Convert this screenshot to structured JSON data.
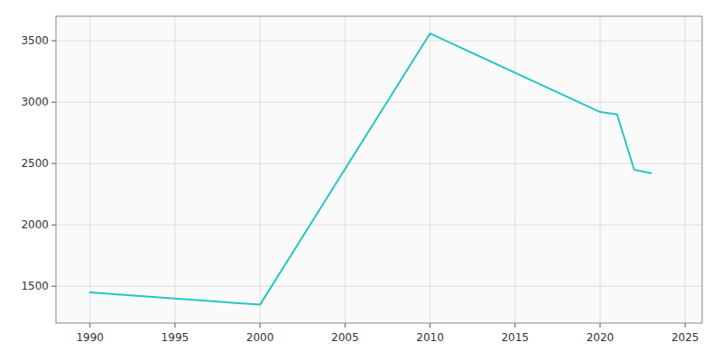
{
  "chart_data": {
    "type": "line",
    "x": [
      1990,
      2000,
      2010,
      2020,
      2021,
      2022,
      2023
    ],
    "values": [
      1450,
      1350,
      3560,
      2920,
      2900,
      2450,
      2420
    ],
    "color": "#26c6c6",
    "xlim": [
      1988,
      2026
    ],
    "ylim": [
      1200,
      3700
    ],
    "xticks": [
      1990,
      1995,
      2000,
      2005,
      2010,
      2015,
      2020,
      2025
    ],
    "yticks": [
      1500,
      2000,
      2500,
      3000,
      3500
    ],
    "grid": true
  }
}
